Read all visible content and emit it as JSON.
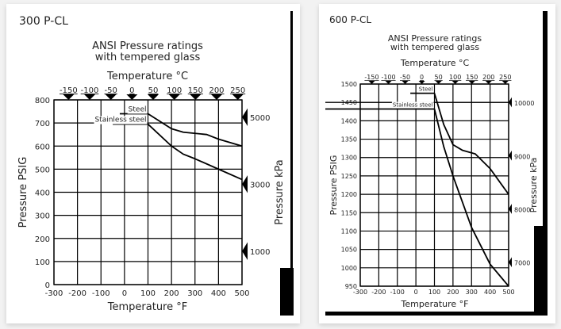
{
  "chart_data": [
    {
      "type": "line",
      "panel_label": "300 P-CL",
      "title": "ANSI Pressure ratings",
      "subtitle": "with tempered glass",
      "xlabel": "Temperature °F",
      "x2label": "Temperature °C",
      "ylabel": "Pressure PSIG",
      "y2label": "Pressure kPa",
      "xlim": [
        -300,
        500
      ],
      "ylim": [
        0,
        800
      ],
      "xticks": [
        -300,
        -200,
        -100,
        0,
        100,
        200,
        300,
        400,
        500
      ],
      "yticks": [
        0,
        100,
        200,
        300,
        400,
        500,
        600,
        700,
        800
      ],
      "x2ticks": [
        -150,
        -100,
        -50,
        0,
        50,
        100,
        150,
        200,
        250
      ],
      "y2ticks": [
        1000,
        3000,
        5000
      ],
      "grid": true,
      "series": [
        {
          "name": "Steel",
          "x": [
            -20,
            100,
            200,
            250,
            350,
            400,
            500
          ],
          "y": [
            740,
            740,
            675,
            660,
            650,
            630,
            600
          ]
        },
        {
          "name": "Stainless steel",
          "x": [
            -50,
            100,
            200,
            250,
            300,
            400,
            500
          ],
          "y": [
            695,
            695,
            600,
            565,
            545,
            500,
            455
          ]
        }
      ]
    },
    {
      "type": "line",
      "panel_label": "600 P-CL",
      "title": "ANSI Pressure ratings",
      "subtitle": "with tempered glass",
      "xlabel": "Temperature °F",
      "x2label": "Temperature °C",
      "ylabel": "Pressure PSIG",
      "y2label": "Pressure kPa",
      "xlim": [
        -300,
        500
      ],
      "ylim": [
        950,
        1500
      ],
      "xticks": [
        -300,
        -200,
        -100,
        0,
        100,
        200,
        300,
        400,
        500
      ],
      "yticks": [
        950,
        1000,
        1050,
        1100,
        1150,
        1200,
        1250,
        1300,
        1350,
        1400,
        1450,
        1500
      ],
      "x2ticks": [
        -150,
        -100,
        -50,
        0,
        50,
        100,
        150,
        200,
        250
      ],
      "y2ticks": [
        7000,
        8000,
        9000,
        10000
      ],
      "grid": true,
      "series": [
        {
          "name": "Steel",
          "x": [
            -30,
            100,
            150,
            200,
            250,
            320,
            400,
            500
          ],
          "y": [
            1475,
            1475,
            1390,
            1335,
            1320,
            1310,
            1270,
            1200
          ]
        },
        {
          "name": "Stainless steel",
          "x": [
            -300,
            100,
            150,
            200,
            300,
            400,
            500
          ],
          "y": [
            1432,
            1432,
            1330,
            1250,
            1110,
            1010,
            950
          ]
        }
      ]
    }
  ]
}
